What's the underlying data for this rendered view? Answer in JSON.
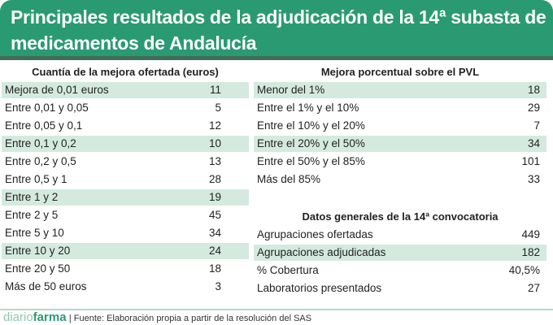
{
  "title": "Principales resultados de la adjudicación de la 14ª subasta de medicamentos de Andalucía",
  "left_table": {
    "heading": "Cuantía de la mejora ofertada (euros)",
    "rows": [
      {
        "label": "Mejora de 0,01 euros",
        "value": "11"
      },
      {
        "label": "Entre 0,01 y 0,05",
        "value": "5"
      },
      {
        "label": "Entre 0,05 y 0,1",
        "value": "12"
      },
      {
        "label": "Entre 0,1 y 0,2",
        "value": "10"
      },
      {
        "label": "Entre 0,2 y 0,5",
        "value": "13"
      },
      {
        "label": "Entre 0,5 y 1",
        "value": "28"
      },
      {
        "label": "Entre 1 y 2",
        "value": "19"
      },
      {
        "label": "Entre 2 y 5",
        "value": "45"
      },
      {
        "label": "Entre 5 y 10",
        "value": "34"
      },
      {
        "label": "Entre 10 y 20",
        "value": "24"
      },
      {
        "label": "Entre 20 y 50",
        "value": "18"
      },
      {
        "label": "Más de 50 euros",
        "value": "3"
      }
    ]
  },
  "pvl_table": {
    "heading": "Mejora porcentual sobre el PVL",
    "rows": [
      {
        "label": "Menor del 1%",
        "value": "18"
      },
      {
        "label": "Entre el 1% y el 10%",
        "value": "29"
      },
      {
        "label": "Entre el 10% y el 20%",
        "value": "7"
      },
      {
        "label": "Entre el 20% y el 50%",
        "value": "34"
      },
      {
        "label": "Entre el 50% y el 85%",
        "value": "101"
      },
      {
        "label": "Más del 85%",
        "value": "33"
      }
    ]
  },
  "general_table": {
    "heading": "Datos generales de la 14ª convocatoria",
    "rows": [
      {
        "label": "Agrupaciones ofertadas",
        "value": "449"
      },
      {
        "label": "Agrupaciones adjudicadas",
        "value": "182"
      },
      {
        "label": "% Cobertura",
        "value": "40,5%"
      },
      {
        "label": "Laboratorios presentados",
        "value": "27"
      }
    ]
  },
  "footer": {
    "logo_part1": "diario",
    "logo_part2": "farma",
    "source": "| Fuente: Elaboración propia a partir de la resolución del SAS"
  },
  "colors": {
    "header": "#2a9a72",
    "highlight": "#d4eadf"
  }
}
